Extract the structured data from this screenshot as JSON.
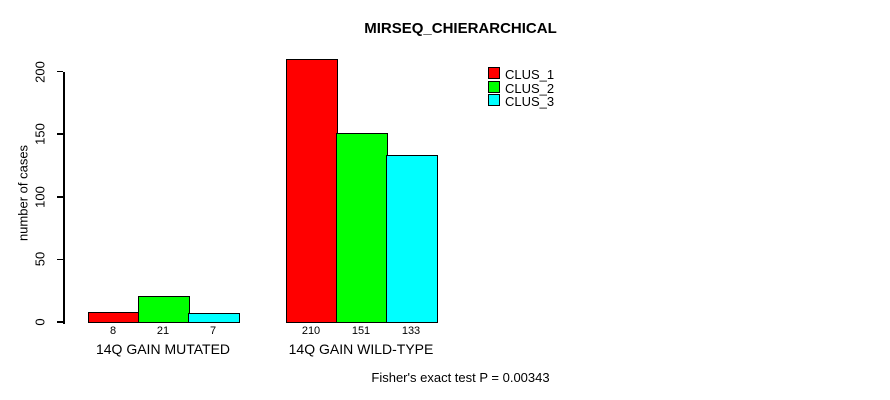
{
  "chart_data": {
    "type": "bar",
    "title": "MIRSEQ_CHIERARCHICAL",
    "ylabel": "number of cases",
    "xlabel": "",
    "ylim": [
      0,
      210
    ],
    "yticks": [
      0,
      50,
      100,
      150,
      200
    ],
    "categories": [
      "14Q GAIN MUTATED",
      "14Q GAIN WILD-TYPE"
    ],
    "series": [
      {
        "name": "CLUS_1",
        "color": "#FF0000",
        "values": [
          8,
          210
        ]
      },
      {
        "name": "CLUS_2",
        "color": "#00FF00",
        "values": [
          21,
          151
        ]
      },
      {
        "name": "CLUS_3",
        "color": "#00FFFF",
        "values": [
          7,
          133
        ]
      }
    ],
    "bar_value_labels": [
      [
        8,
        21,
        7
      ],
      [
        210,
        151,
        133
      ]
    ],
    "legend": {
      "position": "top-right",
      "entries": [
        "CLUS_1",
        "CLUS_2",
        "CLUS_3"
      ]
    },
    "grid": false,
    "annotation": "Fisher's exact test P = 0.00343",
    "background": "#FFFFFF",
    "axis_color": "#000000"
  }
}
